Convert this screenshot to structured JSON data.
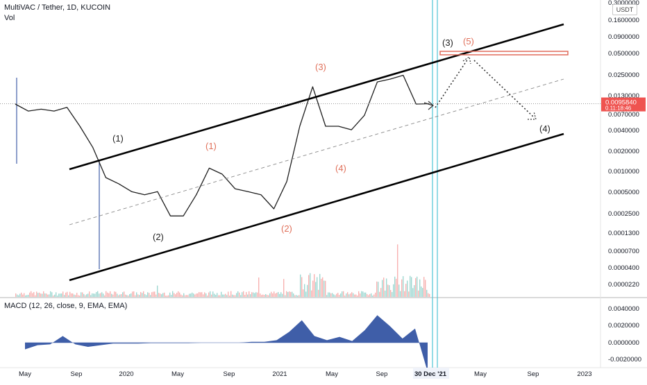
{
  "header": {
    "title": "MultiVAC / Tether, 1D, KUCOIN",
    "volume_label": "Vol",
    "currency": "USDT",
    "macd_label": "MACD (12, 26, close, 9, EMA, EMA)"
  },
  "colors": {
    "up": "#26a69a",
    "down": "#ef5350",
    "macd_fill": "#3f5ea8",
    "vertical_marker": "#5ac8d8",
    "target_zone": "#e06a5a",
    "wave_black": "#222222",
    "wave_red": "#e0705a"
  },
  "time_axis": {
    "labels": [
      "May",
      "Sep",
      "2020",
      "May",
      "Sep",
      "2021",
      "May",
      "Sep",
      "30 Dec '21",
      "May",
      "Sep",
      "2023"
    ],
    "highlighted": "30 Dec '21"
  },
  "chart_data": [
    {
      "type": "line",
      "name": "price",
      "scale": "log",
      "y_ticks": [
        "0.1600000",
        "0.0900000",
        "0.0500000",
        "0.0250000",
        "0.0130000",
        "0.0070000",
        "0.0040000",
        "0.0020000",
        "0.0010000",
        "0.0005000",
        "0.0002500",
        "0.0001300",
        "0.0000700",
        "0.0000400",
        "0.0000220"
      ],
      "y_ticks_partial": [
        "0.3000000"
      ],
      "current_price_tag": "0.0095840",
      "current_price_sub": "0.11:18:46",
      "x": [
        "2019-05",
        "2019-06",
        "2019-07",
        "2019-08",
        "2019-09",
        "2019-10",
        "2019-11",
        "2019-12",
        "2020-01",
        "2020-02",
        "2020-03",
        "2020-04",
        "2020-05",
        "2020-06",
        "2020-07",
        "2020-08",
        "2020-09",
        "2020-10",
        "2020-11",
        "2020-12",
        "2021-01",
        "2021-02",
        "2021-03",
        "2021-04",
        "2021-05",
        "2021-06",
        "2021-07",
        "2021-08",
        "2021-09",
        "2021-10",
        "2021-11",
        "2021-12",
        "2021-12-31"
      ],
      "y": [
        0.0095,
        0.0075,
        0.008,
        0.0075,
        0.0085,
        0.0045,
        0.0022,
        0.0008,
        0.00065,
        0.0005,
        0.00045,
        0.0005,
        0.00022,
        0.00022,
        0.00045,
        0.0011,
        0.0009,
        0.00055,
        0.0005,
        0.00045,
        0.00028,
        0.0007,
        0.0045,
        0.017,
        0.0045,
        0.0045,
        0.004,
        0.0065,
        0.02,
        0.022,
        0.025,
        0.0095,
        0.0096
      ],
      "annotations": {
        "black": [
          "(1)",
          "(2)",
          "(3)",
          "(4)"
        ],
        "red": [
          "(1)",
          "(2)",
          "(3)",
          "(4)",
          "(5)"
        ]
      }
    },
    {
      "type": "bar",
      "name": "volume",
      "note_values": "relative volume bars along the bottom of the price pane"
    },
    {
      "type": "area",
      "name": "MACD",
      "y_ticks": [
        "0.0040000",
        "0.0020000",
        "0.0000000",
        "-0.0020000"
      ],
      "values": [
        -0.0008,
        -0.0003,
        -0.0002,
        0.0008,
        -0.0002,
        -0.0005,
        -0.0003,
        -0.0001,
        -0.0001,
        -0.0001,
        -5e-05,
        -5e-05,
        -5e-05,
        -5e-05,
        0.0,
        0.0,
        0.0,
        0.0,
        0.0001,
        0.0001,
        0.0003,
        0.0013,
        0.0027,
        0.0008,
        0.0003,
        0.0007,
        0.0002,
        0.0015,
        0.0033,
        0.002,
        0.0005,
        0.0017,
        -0.0035
      ]
    }
  ]
}
